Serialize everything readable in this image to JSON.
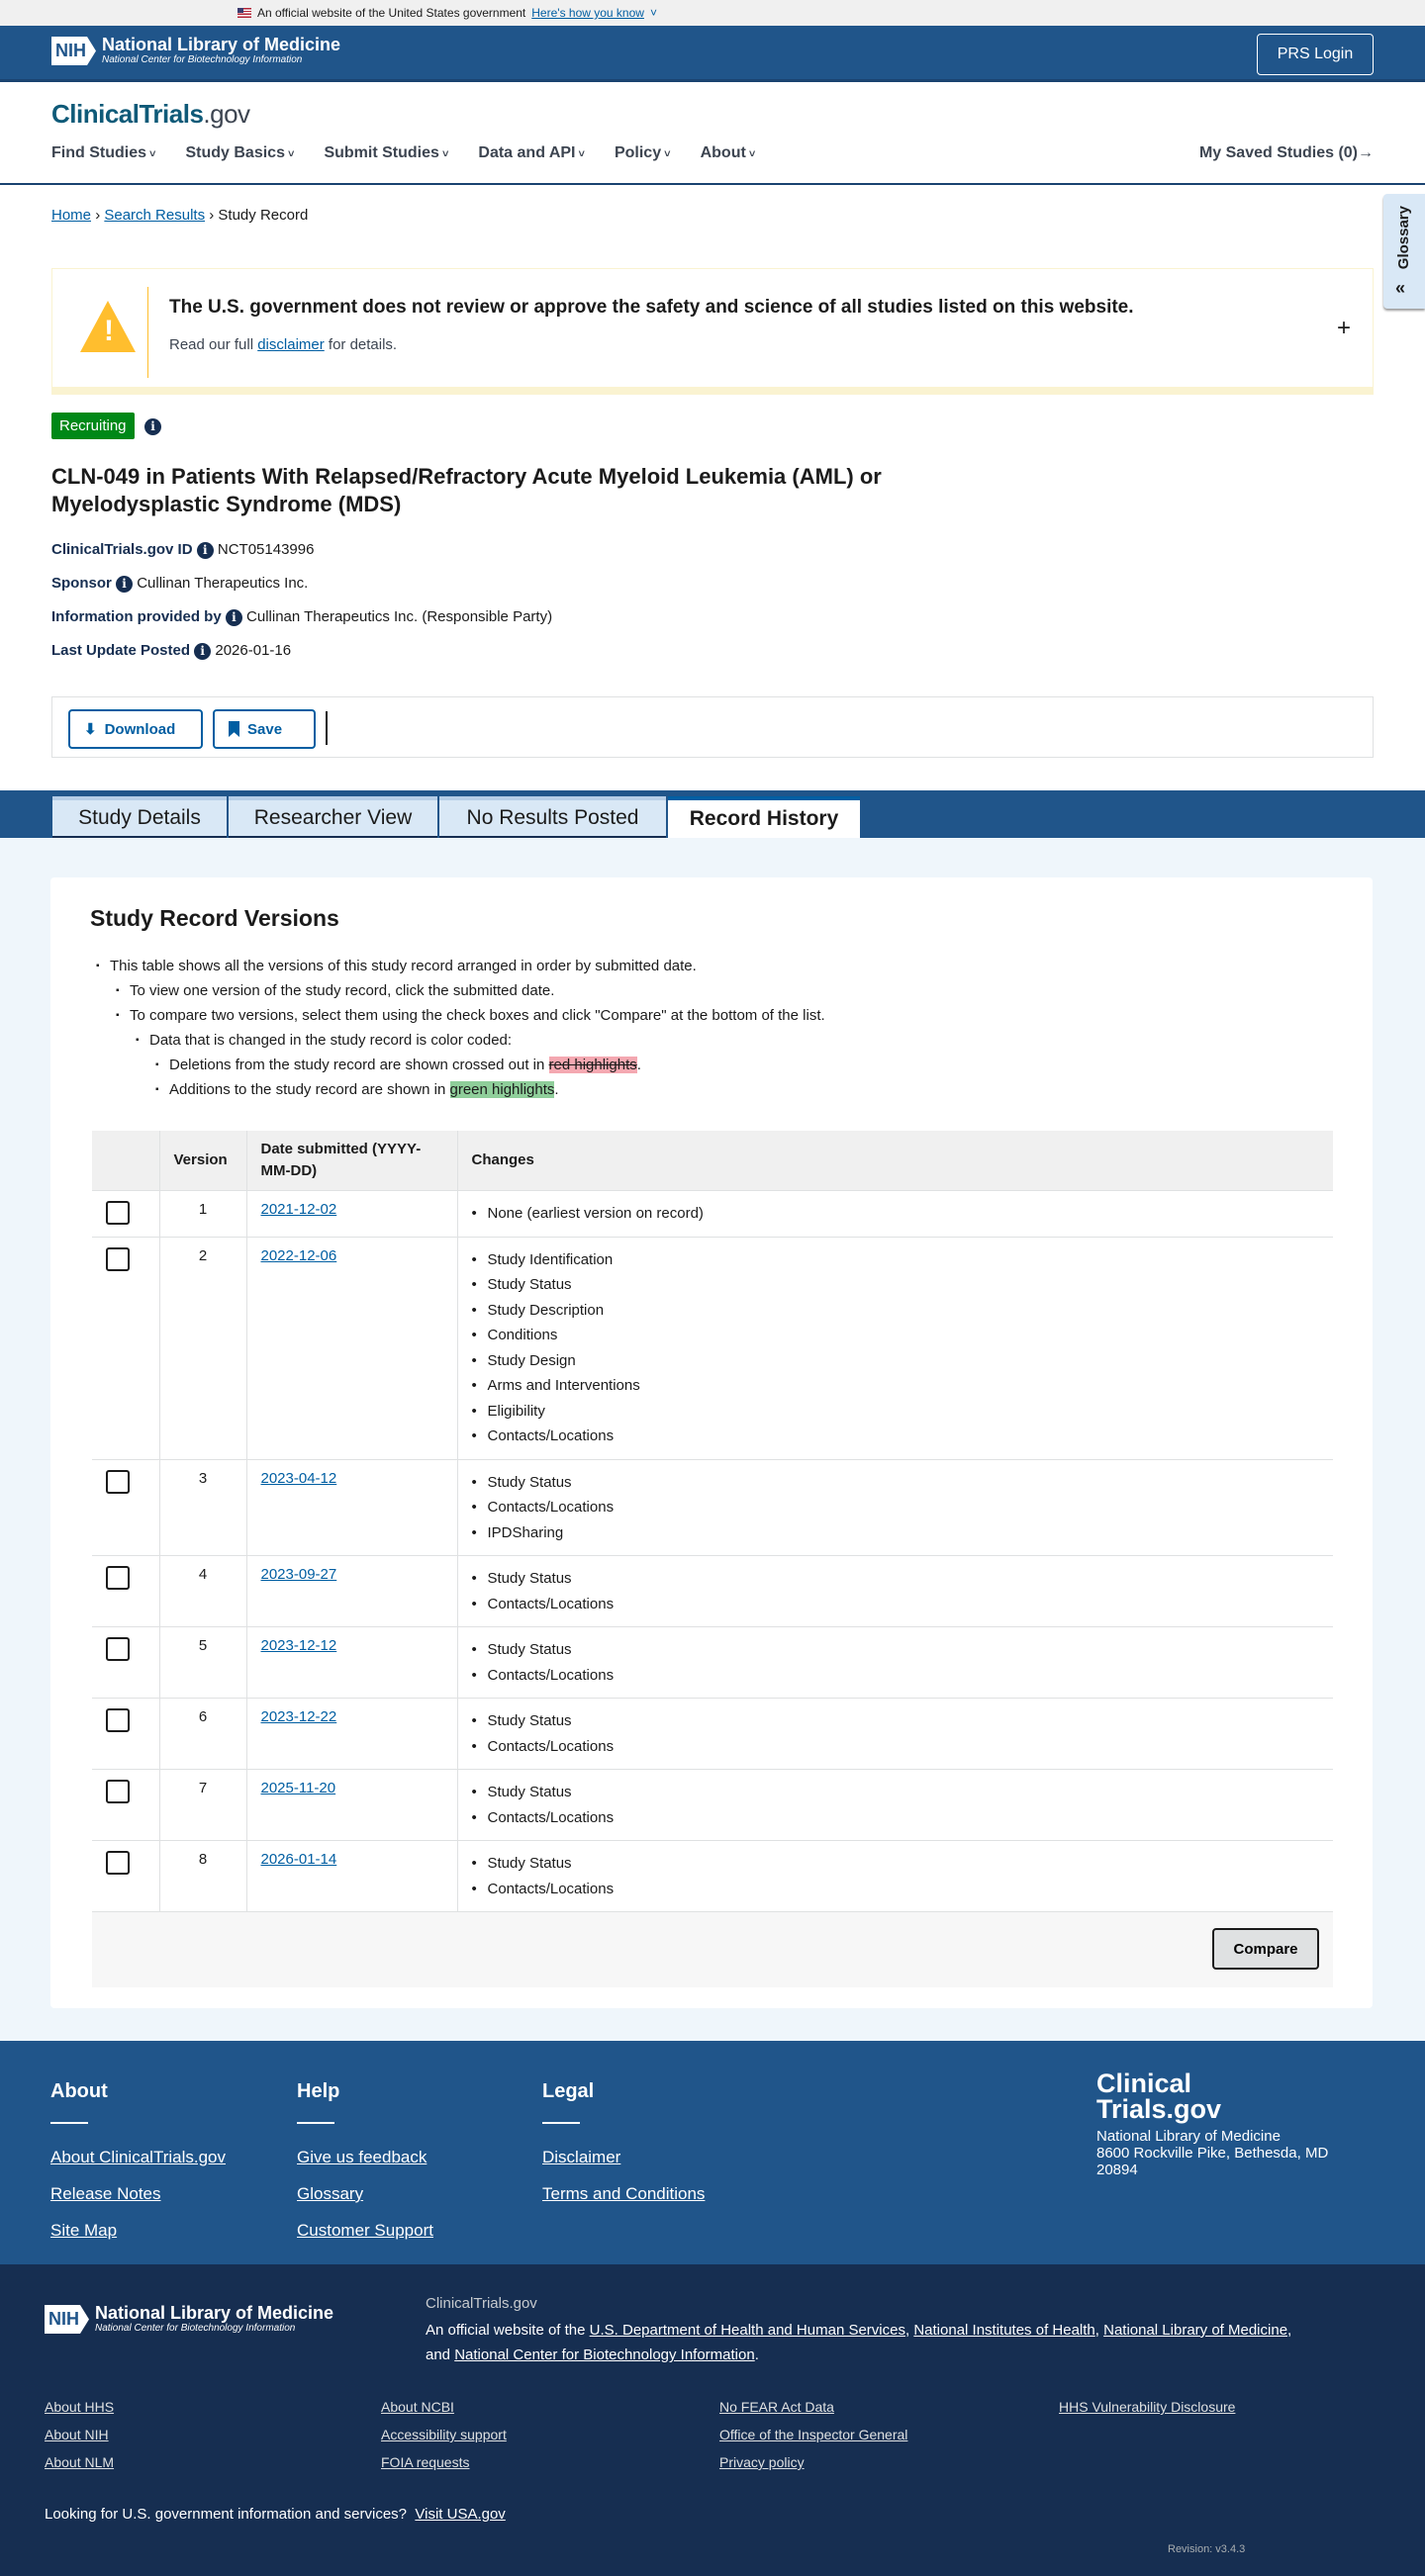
{
  "gov_banner": {
    "text": "An official website of the United States government",
    "link": "Here's how you know"
  },
  "header": {
    "org_name": "National Library of Medicine",
    "org_sub": "National Center for Biotechnology Information",
    "nih": "NIH",
    "login": "PRS Login"
  },
  "site": {
    "logo_main": "ClinicalTrials",
    "logo_suffix": ".gov"
  },
  "nav": {
    "items": [
      "Find Studies",
      "Study Basics",
      "Submit Studies",
      "Data and API",
      "Policy",
      "About"
    ],
    "saved": "My Saved Studies (0)",
    "saved_arrow": "→"
  },
  "breadcrumb": {
    "home": "Home",
    "search": "Search Results",
    "current": "Study Record",
    "sep": "›"
  },
  "glossary": {
    "label": "Glossary",
    "icon": "«"
  },
  "alert": {
    "heading": "The U.S. government does not review or approve the safety and science of all studies listed on this website.",
    "pre": "Read our full ",
    "link": "disclaimer",
    "post": " for details.",
    "expand": "+"
  },
  "study": {
    "status": "Recruiting",
    "title": "CLN-049 in Patients With Relapsed/Refractory Acute Myeloid Leukemia (AML) or Myelodysplastic Syndrome (MDS)",
    "meta": [
      {
        "label": "ClinicalTrials.gov ID",
        "value": "NCT05143996"
      },
      {
        "label": "Sponsor",
        "value": "Cullinan Therapeutics Inc."
      },
      {
        "label": "Information provided by",
        "value": "Cullinan Therapeutics Inc. (Responsible Party)"
      },
      {
        "label": "Last Update Posted",
        "value": "2026-01-16"
      }
    ]
  },
  "actions": {
    "download": "Download",
    "save": "Save"
  },
  "tabs": [
    "Study Details",
    "Researcher View",
    "No Results Posted",
    "Record History"
  ],
  "versions": {
    "heading": "Study Record Versions",
    "intro": [
      "This table shows all the versions of this study record arranged in order by submitted date.",
      "To view one version of the study record, click the submitted date.",
      "To compare two versions, select them using the check boxes and click \"Compare\" at the bottom of the list.",
      "Data that is changed in the study record is color coded:"
    ],
    "deletions_pre": "Deletions from the study record are shown crossed out in ",
    "deletions_hl": "red highlights",
    "additions_pre": "Additions to the study record are shown in ",
    "additions_hl": "green highlights",
    "period": ".",
    "columns": [
      "",
      "Version",
      "Date submitted (YYYY-MM-DD)",
      "Changes"
    ],
    "rows": [
      {
        "version": "1",
        "date": "2021-12-02",
        "changes": [
          "None (earliest version on record)"
        ]
      },
      {
        "version": "2",
        "date": "2022-12-06",
        "changes": [
          "Study Identification",
          "Study Status",
          "Study Description",
          "Conditions",
          "Study Design",
          "Arms and Interventions",
          "Eligibility",
          "Contacts/Locations"
        ]
      },
      {
        "version": "3",
        "date": "2023-04-12",
        "changes": [
          "Study Status",
          "Contacts/Locations",
          "IPDSharing"
        ]
      },
      {
        "version": "4",
        "date": "2023-09-27",
        "changes": [
          "Study Status",
          "Contacts/Locations"
        ]
      },
      {
        "version": "5",
        "date": "2023-12-12",
        "changes": [
          "Study Status",
          "Contacts/Locations"
        ]
      },
      {
        "version": "6",
        "date": "2023-12-22",
        "changes": [
          "Study Status",
          "Contacts/Locations"
        ]
      },
      {
        "version": "7",
        "date": "2025-11-20",
        "changes": [
          "Study Status",
          "Contacts/Locations"
        ]
      },
      {
        "version": "8",
        "date": "2026-01-14",
        "changes": [
          "Study Status",
          "Contacts/Locations"
        ]
      }
    ],
    "compare": "Compare"
  },
  "footer": {
    "cols": [
      {
        "heading": "About",
        "links": [
          "About ClinicalTrials.gov",
          "Release Notes",
          "Site Map"
        ]
      },
      {
        "heading": "Help",
        "links": [
          "Give us feedback",
          "Glossary",
          "Customer Support"
        ]
      },
      {
        "heading": "Legal",
        "links": [
          "Disclaimer",
          "Terms and Conditions"
        ]
      }
    ],
    "logo_line1": "Clinical",
    "logo_line2": "Trials.gov",
    "address": [
      "National Library of Medicine",
      "8600 Rockville Pike, Bethesda, MD",
      "20894"
    ]
  },
  "bottom": {
    "site": "ClinicalTrials.gov",
    "official_pre": "An official website of the ",
    "agencies": [
      "U.S. Department of Health and Human Services",
      "National Institutes of Health",
      "National Library of Medicine",
      "National Center for Biotechnology Information"
    ],
    "and": "and ",
    "links": [
      [
        "About HHS",
        "About NIH",
        "About NLM"
      ],
      [
        "About NCBI",
        "Accessibility support",
        "FOIA requests"
      ],
      [
        "No FEAR Act Data",
        "Office of the Inspector General",
        "Privacy policy"
      ],
      [
        "HHS Vulnerability Disclosure"
      ]
    ],
    "usa_pre": "Looking for U.S. government information and services?",
    "usa_link": "Visit USA.gov",
    "revision": "Revision: v3.4.3"
  },
  "colors": {
    "primary": "#20558a",
    "dark": "#162e51",
    "link": "#005ea2",
    "recruiting": "#008817",
    "warning": "#ffbe2e"
  }
}
